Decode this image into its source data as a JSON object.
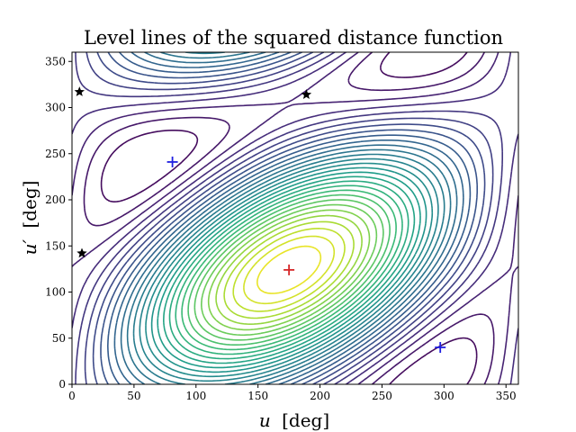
{
  "chart_data": {
    "type": "contour",
    "title": "Level lines of the squared distance function",
    "xlabel_var": "u",
    "ylabel_var": "u′",
    "unit": "[deg]",
    "xlim": [
      0,
      360
    ],
    "ylim": [
      0,
      360
    ],
    "xticks": [
      0,
      50,
      100,
      150,
      200,
      250,
      300,
      350
    ],
    "yticks": [
      0,
      50,
      100,
      150,
      200,
      250,
      300,
      350
    ],
    "colormap": "viridis",
    "n_levels": 30,
    "markers": [
      {
        "type": "plus",
        "color": "#d62728",
        "x": 175,
        "y": 124,
        "note": "global maximum"
      },
      {
        "type": "plus",
        "color": "#1f1fe0",
        "x": 81,
        "y": 241,
        "note": "minimum"
      },
      {
        "type": "plus",
        "color": "#1f1fe0",
        "x": 297,
        "y": 40,
        "note": "minimum"
      },
      {
        "type": "star",
        "color": "#000000",
        "x": 6,
        "y": 317,
        "note": "saddle"
      },
      {
        "type": "star",
        "color": "#000000",
        "x": 189,
        "y": 314,
        "note": "saddle"
      },
      {
        "type": "star",
        "color": "#000000",
        "x": 8,
        "y": 142,
        "note": "saddle"
      }
    ]
  }
}
